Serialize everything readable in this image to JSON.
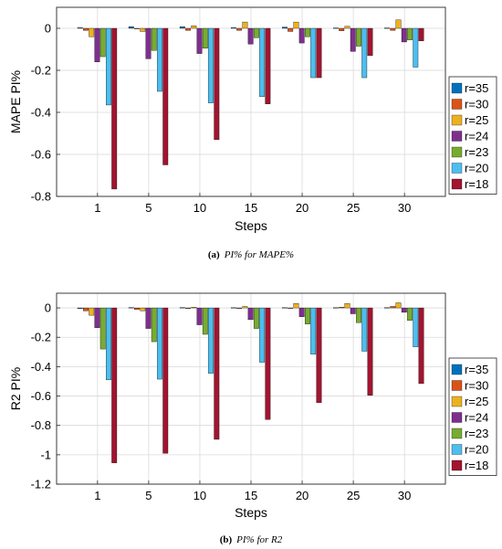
{
  "colors": [
    "#0072BD",
    "#D95319",
    "#EDB120",
    "#7E2F8E",
    "#77AC30",
    "#4DBEEE",
    "#A2142F"
  ],
  "chart_data": [
    {
      "type": "bar",
      "caption_label": "(a)",
      "caption_text": "PI% for MAPE%",
      "xlabel": "Steps",
      "ylabel": "MAPE PI%",
      "ylim": [
        -0.8,
        0.1
      ],
      "yticks": [
        0,
        -0.2,
        -0.4,
        -0.6,
        -0.8
      ],
      "ytick_labels": [
        "0",
        "-0.2",
        "-0.4",
        "-0.6",
        "-0.8"
      ],
      "grid": true,
      "legend_position": "right",
      "categories": [
        "1",
        "5",
        "10",
        "15",
        "20",
        "25",
        "30"
      ],
      "series": [
        {
          "name": "r=35",
          "values": [
            0.003,
            0.008,
            0.008,
            0.003,
            0.006,
            0.002,
            0.002
          ]
        },
        {
          "name": "r=30",
          "values": [
            -0.01,
            0.0,
            -0.01,
            -0.01,
            -0.015,
            -0.012,
            -0.01
          ]
        },
        {
          "name": "r=25",
          "values": [
            -0.04,
            -0.015,
            0.012,
            0.03,
            0.03,
            0.01,
            0.04
          ]
        },
        {
          "name": "r=24",
          "values": [
            -0.16,
            -0.145,
            -0.12,
            -0.075,
            -0.07,
            -0.11,
            -0.065
          ]
        },
        {
          "name": "r=23",
          "values": [
            -0.135,
            -0.105,
            -0.095,
            -0.045,
            -0.04,
            -0.085,
            -0.055
          ]
        },
        {
          "name": "r=20",
          "values": [
            -0.365,
            -0.3,
            -0.355,
            -0.325,
            -0.235,
            -0.235,
            -0.185
          ]
        },
        {
          "name": "r=18",
          "values": [
            -0.765,
            -0.65,
            -0.53,
            -0.36,
            -0.235,
            -0.13,
            -0.06
          ]
        }
      ]
    },
    {
      "type": "bar",
      "caption_label": "(b)",
      "caption_text": "PI% for R2",
      "xlabel": "Steps",
      "ylabel": "R2 PI%",
      "ylim": [
        -1.2,
        0.1
      ],
      "yticks": [
        0,
        -0.2,
        -0.4,
        -0.6,
        -0.8,
        -1,
        -1.2
      ],
      "ytick_labels": [
        "0",
        "-0.2",
        "-0.4",
        "-0.6",
        "-0.8",
        "-1",
        "-1.2"
      ],
      "grid": true,
      "legend_position": "right",
      "categories": [
        "1",
        "5",
        "10",
        "15",
        "20",
        "25",
        "30"
      ],
      "series": [
        {
          "name": "r=35",
          "values": [
            -0.005,
            0.003,
            0.003,
            0.002,
            0.002,
            0.002,
            0.002
          ]
        },
        {
          "name": "r=30",
          "values": [
            -0.02,
            -0.01,
            -0.005,
            -0.005,
            0.0,
            0.005,
            0.01
          ]
        },
        {
          "name": "r=25",
          "values": [
            -0.05,
            -0.02,
            0.005,
            0.01,
            0.03,
            0.03,
            0.035
          ]
        },
        {
          "name": "r=24",
          "values": [
            -0.135,
            -0.14,
            -0.115,
            -0.08,
            -0.06,
            -0.04,
            -0.03
          ]
        },
        {
          "name": "r=23",
          "values": [
            -0.28,
            -0.23,
            -0.18,
            -0.14,
            -0.11,
            -0.1,
            -0.085
          ]
        },
        {
          "name": "r=20",
          "values": [
            -0.49,
            -0.485,
            -0.445,
            -0.37,
            -0.315,
            -0.295,
            -0.265
          ]
        },
        {
          "name": "r=18",
          "values": [
            -1.055,
            -0.99,
            -0.895,
            -0.76,
            -0.645,
            -0.595,
            -0.515
          ]
        }
      ]
    }
  ]
}
